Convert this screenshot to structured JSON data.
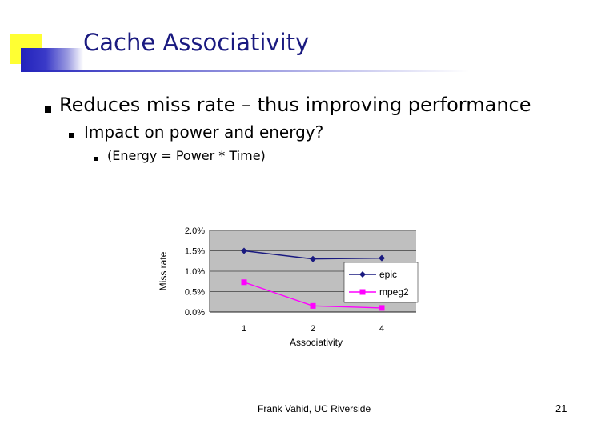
{
  "slide": {
    "title": "Cache Associativity",
    "bullet_1": "Reduces miss rate – thus improving performance",
    "bullet_2": "Impact on power and energy?",
    "bullet_3": "(Energy = Power * Time)",
    "footer": "Frank Vahid, UC Riverside",
    "page_number": "21"
  },
  "chart_data": {
    "type": "line",
    "categories": [
      "1",
      "2",
      "4"
    ],
    "series": [
      {
        "name": "epic",
        "values": [
          1.5,
          1.3,
          1.32
        ],
        "color": "#1a1a80",
        "marker": "diamond"
      },
      {
        "name": "mpeg2",
        "values": [
          0.73,
          0.15,
          0.1
        ],
        "color": "#ff00ff",
        "marker": "square"
      }
    ],
    "xlabel": "Associativity",
    "ylabel": "Miss rate",
    "ylim": [
      0,
      2
    ],
    "yticks": [
      "0.0%",
      "0.5%",
      "1.0%",
      "1.5%",
      "2.0%"
    ],
    "ytick_values": [
      0,
      0.5,
      1.0,
      1.5,
      2.0
    ],
    "grid": true,
    "legend": "right"
  }
}
